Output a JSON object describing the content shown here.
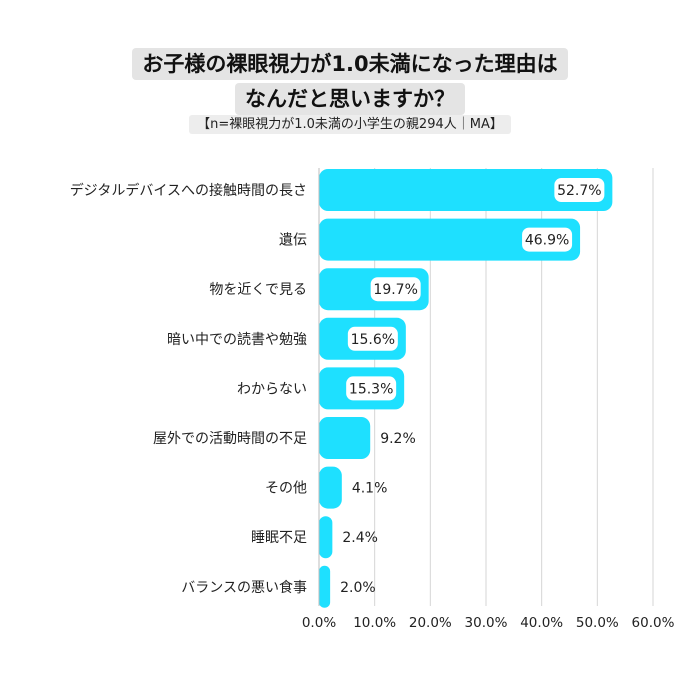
{
  "chart_data": {
    "type": "bar",
    "orientation": "horizontal",
    "title_lines": [
      "お子様の裸眼視力が1.0未満になった理由は",
      "なんだと思いますか？"
    ],
    "subtitle": "【n=裸眼視力が1.0未満の小学生の親294人｜MA】",
    "categories": [
      "デジタルデバイスへの接触時間の長さ",
      "遺伝",
      "物を近くで見る",
      "暗い中での読書や勉強",
      "わからない",
      "屋外での活動時間の不足",
      "その他",
      "睡眠不足",
      "バランスの悪い食事"
    ],
    "values": [
      52.7,
      46.9,
      19.7,
      15.6,
      15.3,
      9.2,
      4.1,
      2.4,
      2.0
    ],
    "value_labels": [
      "52.7%",
      "46.9%",
      "19.7%",
      "15.6%",
      "15.3%",
      "9.2%",
      "4.1%",
      "2.4%",
      "2.0%"
    ],
    "xticks": [
      "0.0%",
      "10.0%",
      "20.0%",
      "30.0%",
      "40.0%",
      "50.0%",
      "60.0%"
    ],
    "xlim": [
      0,
      60
    ],
    "grid": true,
    "bar_color": "#1ee0ff"
  }
}
